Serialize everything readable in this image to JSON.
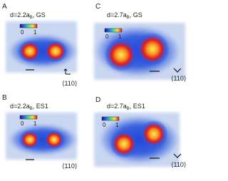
{
  "panels": [
    {
      "label": "A",
      "title": {
        "main": "d=2.2a",
        "sub": "B",
        "rest": ", GS"
      },
      "colorbar": [
        "0",
        "1"
      ],
      "direction": "⟨110⟩"
    },
    {
      "label": "B",
      "title": {
        "main": "d=2.2a",
        "sub": "B",
        "rest": ", ES1"
      },
      "colorbar": [
        "0",
        "1"
      ],
      "direction": "⟨110⟩"
    },
    {
      "label": "C",
      "title": {
        "main": "d=2.7a",
        "sub": "B",
        "rest": ", GS"
      },
      "colorbar": [
        "0",
        "1"
      ],
      "direction": "⟨110⟩"
    },
    {
      "label": "D",
      "title": {
        "main": "d=2.7a",
        "sub": "B",
        "rest": ", ES1"
      },
      "colorbar": [
        "0",
        "1"
      ],
      "direction": "⟨110⟩"
    }
  ]
}
